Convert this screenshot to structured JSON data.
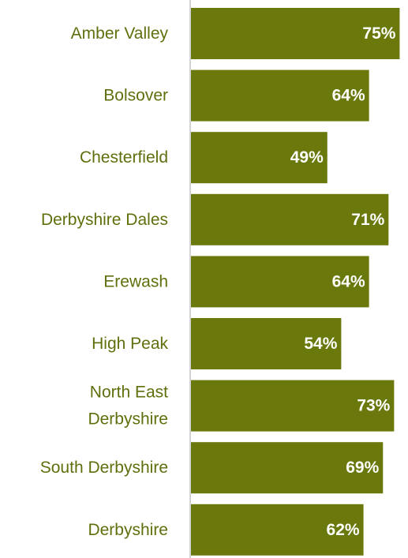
{
  "chart_data": {
    "type": "bar",
    "orientation": "horizontal",
    "categories": [
      "Amber Valley",
      "Bolsover",
      "Chesterfield",
      "Derbyshire Dales",
      "Erewash",
      "High Peak",
      "North East Derbyshire",
      "South Derbyshire",
      "Derbyshire"
    ],
    "values": [
      75,
      64,
      49,
      71,
      64,
      54,
      73,
      69,
      62
    ],
    "data_labels": [
      "75%",
      "64%",
      "49%",
      "71%",
      "64%",
      "54%",
      "73%",
      "69%",
      "62%"
    ],
    "xlim": [
      0,
      78
    ],
    "grid": false,
    "legend": "none",
    "title": "",
    "xlabel": "",
    "ylabel": ""
  },
  "colors": {
    "bar": "#6b780c",
    "label_text": "#5e700c",
    "data_label_text": "#ffffff",
    "axis_line": "#a6a6a6"
  }
}
